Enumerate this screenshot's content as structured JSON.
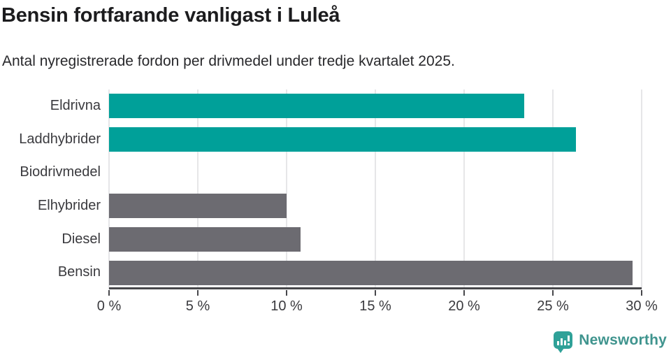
{
  "chart_data": {
    "type": "bar",
    "orientation": "horizontal",
    "title": "Bensin fortfarande vanligast i Luleå",
    "subtitle": "Antal nyregistrerade fordon per drivmedel under tredje kvartalet 2025.",
    "categories": [
      "Eldrivna",
      "Laddhybrider",
      "Biodrivmedel",
      "Elhybrider",
      "Diesel",
      "Bensin"
    ],
    "values": [
      23.4,
      26.3,
      0,
      10,
      10.8,
      29.5
    ],
    "unit": "%",
    "xlim": [
      0,
      30
    ],
    "xticks": [
      0,
      5,
      10,
      15,
      20,
      25,
      30
    ],
    "xtick_labels": [
      "0 %",
      "5 %",
      "10 %",
      "15 %",
      "20 %",
      "25 %",
      "30 %"
    ],
    "grid": true,
    "legend": "none",
    "bar_colors": [
      "#00a099",
      "#00a099",
      "#6c6b71",
      "#6c6b71",
      "#6c6b71",
      "#6c6b71"
    ]
  },
  "footer": {
    "brand": "Newsworthy"
  },
  "colors": {
    "accent_teal": "#00a099",
    "bar_gray": "#6c6b71",
    "gridline": "#e6e6e8",
    "axis": "#47474b",
    "title_text": "#1c1c1e",
    "body_text": "#3a3a3e",
    "logo_background": "#2fa198",
    "logo_text": "#3f948e"
  }
}
